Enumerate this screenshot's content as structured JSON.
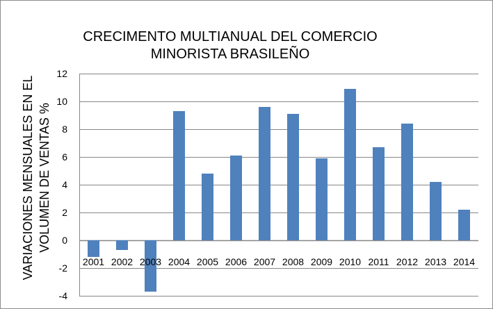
{
  "chart_data": {
    "type": "bar",
    "title_lines": [
      "CRECIMENTO MULTIANUAL DEL COMERCIO",
      "MINORISTA BRASILEÑO"
    ],
    "ylabel_lines": [
      "VARIACIONES MENSUALES EN EL",
      "VOLUMEN DE VENTAS %"
    ],
    "xlabel": "",
    "categories": [
      "2001",
      "2002",
      "2003",
      "2004",
      "2005",
      "2006",
      "2007",
      "2008",
      "2009",
      "2010",
      "2011",
      "2012",
      "2013",
      "2014"
    ],
    "values": [
      -1.2,
      -0.7,
      -3.7,
      9.3,
      4.8,
      6.1,
      9.6,
      9.1,
      5.9,
      10.9,
      6.7,
      8.4,
      4.2,
      2.2
    ],
    "ylim": [
      -4,
      12
    ],
    "yticks": [
      "12",
      "10",
      "8",
      "6",
      "4",
      "2",
      "0",
      "-2",
      "-4"
    ],
    "grid": true,
    "bar_color": "#4f81bd",
    "grid_color": "#868686"
  }
}
